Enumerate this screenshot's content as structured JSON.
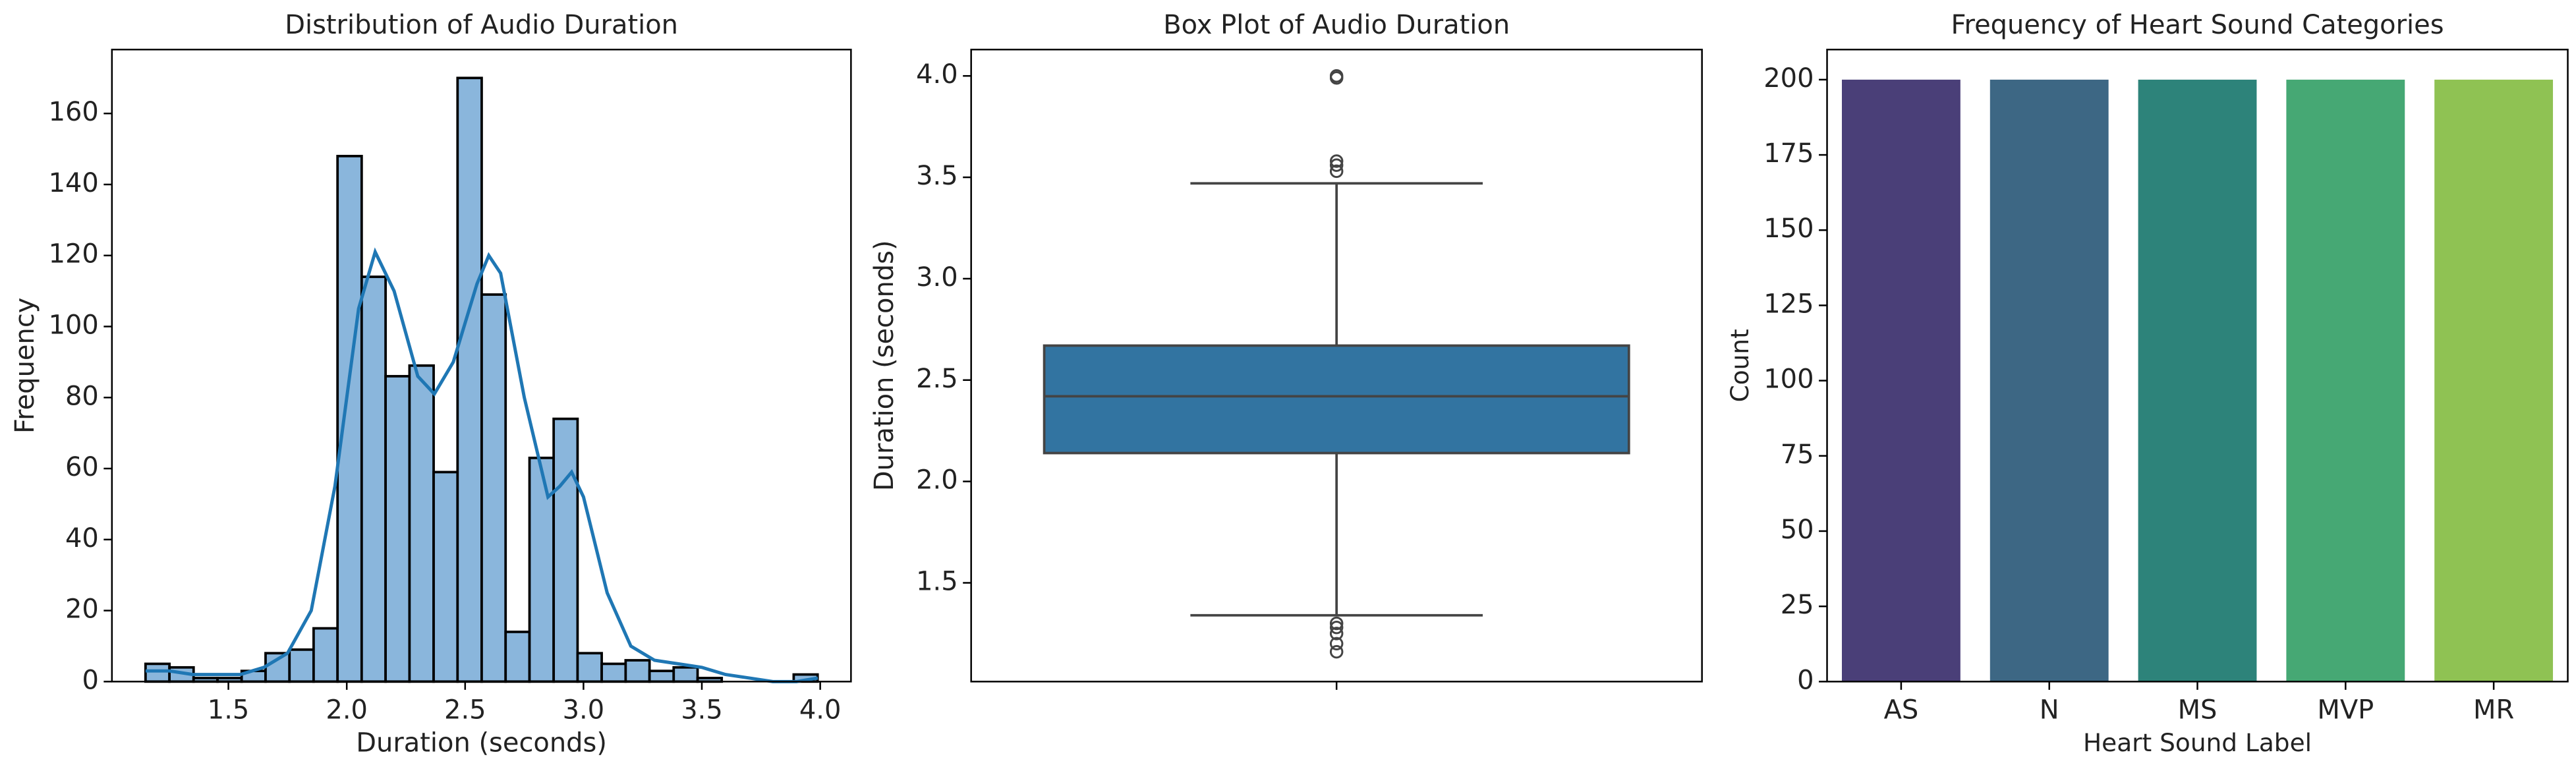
{
  "chart_data": [
    {
      "type": "histogram",
      "title": "Distribution of Audio Duration",
      "xlabel": "Duration (seconds)",
      "ylabel": "Frequency",
      "bins": [
        1.15,
        1.251,
        1.353,
        1.454,
        1.556,
        1.657,
        1.758,
        1.86,
        1.961,
        2.063,
        2.164,
        2.265,
        2.367,
        2.468,
        2.57,
        2.671,
        2.772,
        2.874,
        2.975,
        3.077,
        3.178,
        3.279,
        3.381,
        3.482,
        3.584,
        3.685,
        3.786,
        3.888,
        3.989
      ],
      "values": [
        5,
        4,
        1,
        1,
        3,
        8,
        9,
        15,
        148,
        114,
        86,
        89,
        59,
        170,
        109,
        14,
        63,
        74,
        8,
        5,
        6,
        3,
        4,
        1,
        0,
        0,
        0,
        2
      ],
      "color": "#8ab6dc",
      "edgecolor": "#000000",
      "kde": {
        "color": "#1f77b4",
        "x": [
          1.15,
          1.25,
          1.35,
          1.45,
          1.55,
          1.65,
          1.75,
          1.85,
          1.95,
          2.05,
          2.12,
          2.2,
          2.3,
          2.37,
          2.45,
          2.55,
          2.6,
          2.65,
          2.75,
          2.85,
          2.9,
          2.95,
          3.0,
          3.1,
          3.2,
          3.3,
          3.4,
          3.5,
          3.6,
          3.7,
          3.8,
          3.9,
          3.99
        ],
        "values": [
          3,
          3,
          2,
          2,
          2,
          4,
          8,
          20,
          55,
          105,
          121,
          110,
          86,
          81,
          90,
          112,
          120,
          115,
          80,
          52,
          55,
          59,
          52,
          25,
          10,
          6,
          5,
          4,
          2,
          1,
          0,
          0,
          1
        ]
      },
      "xlim": [
        1.008,
        4.13
      ],
      "xticks": [
        1.5,
        {
          "value": 2,
          "label": "2.0"
        },
        2.5,
        {
          "value": 3,
          "label": "3.0"
        },
        3.5,
        {
          "value": 4,
          "label": "4.0"
        }
      ],
      "ylim": [
        0,
        178
      ],
      "yticks": [
        0,
        20,
        40,
        60,
        80,
        100,
        120,
        140,
        160
      ]
    },
    {
      "type": "box",
      "title": "Box Plot of Audio Duration",
      "ylabel": "Duration (seconds)",
      "color": "#3274a1",
      "whisker_low": 1.34,
      "q1": 2.14,
      "median": 2.42,
      "q3": 2.67,
      "whisker_high": 3.47,
      "outliers": [
        3.99,
        4.0,
        3.58,
        3.56,
        3.53,
        1.3,
        1.28,
        1.25,
        1.2,
        1.16
      ],
      "ylim": [
        1.013,
        4.13
      ],
      "yticks": [
        1.5,
        {
          "value": 2,
          "label": "2.0"
        },
        2.5,
        {
          "value": 3,
          "label": "3.0"
        },
        3.5,
        {
          "value": 4,
          "label": "4.0"
        }
      ]
    },
    {
      "type": "bar",
      "title": "Frequency of Heart Sound Categories",
      "xlabel": "Heart Sound Label",
      "ylabel": "Count",
      "categories": [
        "AS",
        "N",
        "MS",
        "MVP",
        "MR"
      ],
      "values": [
        200,
        200,
        200,
        200,
        200
      ],
      "colors": [
        "#4a3f78",
        "#3d6784",
        "#2d837a",
        "#46a874",
        "#8fc253"
      ],
      "ylim": [
        0,
        210
      ],
      "yticks": [
        0,
        25,
        50,
        75,
        100,
        125,
        150,
        175,
        200
      ]
    }
  ]
}
